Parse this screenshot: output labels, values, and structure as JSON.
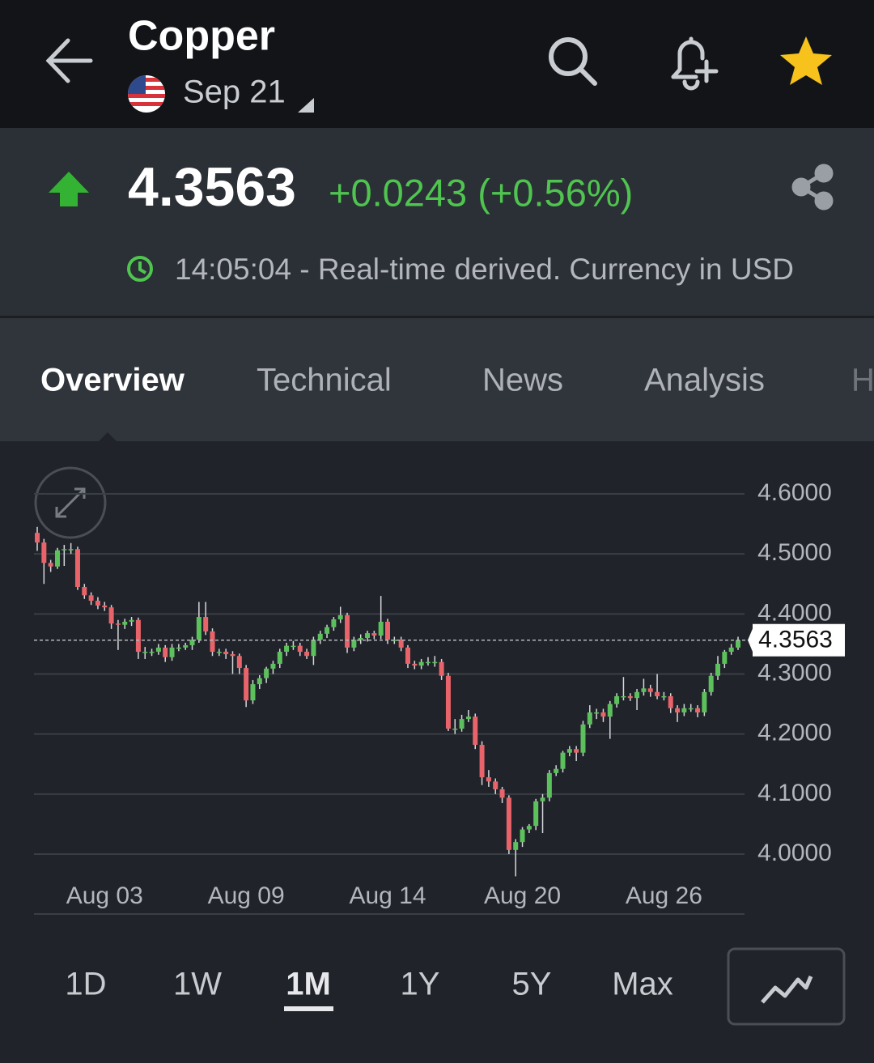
{
  "header": {
    "title": "Copper",
    "contract": "Sep 21"
  },
  "quote": {
    "price": "4.3563",
    "change": "+0.0243 (+0.56%)",
    "time_note": "14:05:04 - Real-time derived. Currency in USD"
  },
  "tabs": [
    "Overview",
    "Technical",
    "News",
    "Analysis",
    "H"
  ],
  "periods": [
    "1D",
    "1W",
    "1M",
    "1Y",
    "5Y",
    "Max"
  ],
  "chart_data": {
    "type": "candlestick",
    "up_color": "#5cc15c",
    "down_color": "#e8646a",
    "categories": [
      null,
      null,
      null,
      null,
      null,
      null,
      null,
      null,
      null,
      null,
      "Aug 03",
      null,
      null,
      null,
      null,
      null,
      null,
      null,
      null,
      null,
      null,
      null,
      null,
      null,
      null,
      null,
      null,
      null,
      null,
      null,
      null,
      "Aug 09",
      null,
      null,
      null,
      null,
      null,
      null,
      null,
      null,
      null,
      null,
      null,
      null,
      null,
      null,
      null,
      null,
      null,
      null,
      null,
      null,
      "Aug 14",
      null,
      null,
      null,
      null,
      null,
      null,
      null,
      null,
      null,
      null,
      null,
      null,
      null,
      null,
      null,
      null,
      null,
      null,
      null,
      "Aug 20",
      null,
      null,
      null,
      null,
      null,
      null,
      null,
      null,
      null,
      null,
      null,
      null,
      null,
      null,
      null,
      null,
      null,
      null,
      null,
      null,
      "Aug 26",
      null,
      null,
      null,
      null,
      null,
      null,
      null,
      null,
      null,
      null,
      null
    ],
    "series": [
      {
        "values": [
          [
            4.535,
            4.545,
            4.505,
            4.519
          ],
          [
            4.519,
            4.525,
            4.45,
            4.485
          ],
          [
            4.485,
            4.49,
            4.47,
            4.479
          ],
          [
            4.479,
            4.51,
            4.475,
            4.506
          ],
          [
            4.506,
            4.515,
            4.48,
            4.508
          ],
          [
            4.508,
            4.518,
            4.5,
            4.508
          ],
          [
            4.508,
            4.512,
            4.44,
            4.445
          ],
          [
            4.445,
            4.45,
            4.425,
            4.431
          ],
          [
            4.431,
            4.436,
            4.415,
            4.422
          ],
          [
            4.422,
            4.428,
            4.408,
            4.414
          ],
          [
            4.414,
            4.42,
            4.405,
            4.411
          ],
          [
            4.411,
            4.415,
            4.375,
            4.384
          ],
          [
            4.384,
            4.39,
            4.34,
            4.382
          ],
          [
            4.382,
            4.392,
            4.375,
            4.387
          ],
          [
            4.387,
            4.395,
            4.38,
            4.39
          ],
          [
            4.39,
            4.394,
            4.325,
            4.337
          ],
          [
            4.337,
            4.345,
            4.325,
            4.337
          ],
          [
            4.337,
            4.342,
            4.33,
            4.337
          ],
          [
            4.337,
            4.35,
            4.332,
            4.344
          ],
          [
            4.344,
            4.348,
            4.32,
            4.328
          ],
          [
            4.328,
            4.35,
            4.322,
            4.344
          ],
          [
            4.344,
            4.35,
            4.338,
            4.344
          ],
          [
            4.344,
            4.352,
            4.34,
            4.348
          ],
          [
            4.348,
            4.362,
            4.34,
            4.357
          ],
          [
            4.357,
            4.42,
            4.352,
            4.395
          ],
          [
            4.395,
            4.42,
            4.365,
            4.371
          ],
          [
            4.371,
            4.376,
            4.33,
            4.337
          ],
          [
            4.337,
            4.342,
            4.33,
            4.337
          ],
          [
            4.337,
            4.342,
            4.325,
            4.333
          ],
          [
            4.333,
            4.338,
            4.3,
            4.33
          ],
          [
            4.33,
            4.334,
            4.3,
            4.31
          ],
          [
            4.31,
            4.315,
            4.245,
            4.256
          ],
          [
            4.256,
            4.29,
            4.25,
            4.283
          ],
          [
            4.283,
            4.298,
            4.275,
            4.293
          ],
          [
            4.293,
            4.312,
            4.285,
            4.309
          ],
          [
            4.309,
            4.322,
            4.3,
            4.317
          ],
          [
            4.317,
            4.342,
            4.31,
            4.337
          ],
          [
            4.337,
            4.352,
            4.33,
            4.347
          ],
          [
            4.347,
            4.355,
            4.34,
            4.347
          ],
          [
            4.347,
            4.352,
            4.33,
            4.337
          ],
          [
            4.337,
            4.342,
            4.325,
            4.33
          ],
          [
            4.33,
            4.362,
            4.315,
            4.357
          ],
          [
            4.357,
            4.372,
            4.35,
            4.367
          ],
          [
            4.367,
            4.382,
            4.36,
            4.378
          ],
          [
            4.378,
            4.395,
            4.372,
            4.391
          ],
          [
            4.391,
            4.412,
            4.385,
            4.398
          ],
          [
            4.398,
            4.402,
            4.335,
            4.344
          ],
          [
            4.344,
            4.362,
            4.338,
            4.357
          ],
          [
            4.357,
            4.366,
            4.35,
            4.36
          ],
          [
            4.36,
            4.372,
            4.354,
            4.368
          ],
          [
            4.368,
            4.372,
            4.358,
            4.364
          ],
          [
            4.364,
            4.43,
            4.358,
            4.387
          ],
          [
            4.387,
            4.392,
            4.35,
            4.357
          ],
          [
            4.357,
            4.362,
            4.35,
            4.357
          ],
          [
            4.357,
            4.362,
            4.338,
            4.344
          ],
          [
            4.344,
            4.348,
            4.31,
            4.317
          ],
          [
            4.317,
            4.322,
            4.308,
            4.314
          ],
          [
            4.314,
            4.325,
            4.308,
            4.32
          ],
          [
            4.32,
            4.328,
            4.314,
            4.32
          ],
          [
            4.32,
            4.33,
            4.312,
            4.32
          ],
          [
            4.32,
            4.325,
            4.29,
            4.297
          ],
          [
            4.297,
            4.302,
            4.205,
            4.209
          ],
          [
            4.209,
            4.225,
            4.2,
            4.209
          ],
          [
            4.209,
            4.232,
            4.204,
            4.225
          ],
          [
            4.225,
            4.24,
            4.22,
            4.229
          ],
          [
            4.229,
            4.234,
            4.175,
            4.182
          ],
          [
            4.182,
            4.188,
            4.115,
            4.128
          ],
          [
            4.128,
            4.14,
            4.112,
            4.121
          ],
          [
            4.121,
            4.126,
            4.1,
            4.108
          ],
          [
            4.108,
            4.112,
            4.085,
            4.094
          ],
          [
            4.094,
            4.098,
            4.0,
            4.007
          ],
          [
            4.007,
            4.025,
            3.963,
            4.02
          ],
          [
            4.02,
            4.045,
            4.012,
            4.041
          ],
          [
            4.041,
            4.05,
            4.035,
            4.047
          ],
          [
            4.047,
            4.092,
            4.04,
            4.088
          ],
          [
            4.088,
            4.1,
            4.035,
            4.094
          ],
          [
            4.094,
            4.14,
            4.088,
            4.135
          ],
          [
            4.135,
            4.148,
            4.13,
            4.142
          ],
          [
            4.142,
            4.172,
            4.136,
            4.169
          ],
          [
            4.169,
            4.18,
            4.163,
            4.175
          ],
          [
            4.175,
            4.18,
            4.155,
            4.169
          ],
          [
            4.169,
            4.222,
            4.163,
            4.216
          ],
          [
            4.216,
            4.248,
            4.21,
            4.236
          ],
          [
            4.236,
            4.242,
            4.225,
            4.236
          ],
          [
            4.236,
            4.242,
            4.22,
            4.229
          ],
          [
            4.229,
            4.255,
            4.192,
            4.25
          ],
          [
            4.25,
            4.268,
            4.244,
            4.263
          ],
          [
            4.263,
            4.295,
            4.256,
            4.263
          ],
          [
            4.263,
            4.268,
            4.255,
            4.26
          ],
          [
            4.26,
            4.275,
            4.24,
            4.27
          ],
          [
            4.27,
            4.292,
            4.264,
            4.276
          ],
          [
            4.276,
            4.282,
            4.262,
            4.27
          ],
          [
            4.27,
            4.3,
            4.258,
            4.263
          ],
          [
            4.263,
            4.27,
            4.256,
            4.263
          ],
          [
            4.263,
            4.268,
            4.235,
            4.243
          ],
          [
            4.243,
            4.248,
            4.22,
            4.236
          ],
          [
            4.236,
            4.25,
            4.23,
            4.243
          ],
          [
            4.243,
            4.25,
            4.237,
            4.243
          ],
          [
            4.243,
            4.248,
            4.228,
            4.236
          ],
          [
            4.236,
            4.275,
            4.23,
            4.27
          ],
          [
            4.27,
            4.302,
            4.264,
            4.297
          ],
          [
            4.297,
            4.33,
            4.29,
            4.317
          ],
          [
            4.317,
            4.34,
            4.31,
            4.337
          ],
          [
            4.337,
            4.35,
            4.332,
            4.344
          ],
          [
            4.344,
            4.362,
            4.34,
            4.3563
          ]
        ]
      }
    ],
    "ylim": [
      3.95,
      4.65
    ],
    "yticks": [
      {
        "value": 4.0,
        "label": "4.0000"
      },
      {
        "value": 4.1,
        "label": "4.1000"
      },
      {
        "value": 4.2,
        "label": "4.2000"
      },
      {
        "value": 4.3,
        "label": "4.3000"
      },
      {
        "value": 4.4,
        "label": "4.4000"
      },
      {
        "value": 4.5,
        "label": "4.5000"
      },
      {
        "value": 4.6,
        "label": "4.6000"
      }
    ],
    "grid": true
  }
}
